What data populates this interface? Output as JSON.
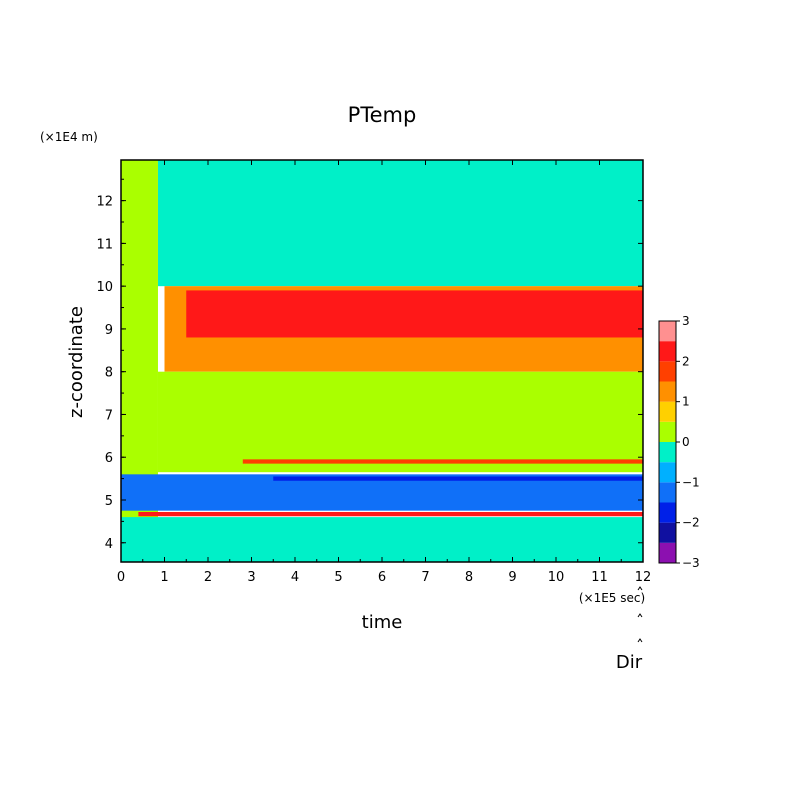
{
  "chart_data": {
    "type": "heatmap",
    "title": "PTemp",
    "xlabel": "time",
    "ylabel": "z-coordinate",
    "x_unit": "(×1E5 sec)",
    "y_unit": "(×1E4 m)",
    "xlim": [
      0,
      12
    ],
    "ylim": [
      3.55,
      12.95
    ],
    "x_ticks": [
      "0",
      "1",
      "2",
      "3",
      "4",
      "5",
      "6",
      "7",
      "8",
      "9",
      "10",
      "11",
      "12"
    ],
    "y_ticks": [
      "4",
      "5",
      "6",
      "7",
      "8",
      "9",
      "10",
      "11",
      "12"
    ],
    "colorbar": {
      "levels": [
        -3,
        -2.5,
        -2,
        -1.5,
        -1,
        -0.5,
        0,
        0.5,
        1,
        1.5,
        2,
        2.5,
        3
      ],
      "tick_labels": [
        "-3",
        "-2",
        "-1",
        "0",
        "1",
        "2",
        "3"
      ],
      "colors": [
        "#8c10b0",
        "#1010a0",
        "#0020e8",
        "#1070f8",
        "#00b0ff",
        "#00f0c8",
        "#aaff00",
        "#ffd000",
        "#ff9000",
        "#ff4000",
        "#ff1818",
        "#ff9090"
      ],
      "over_color": "#ffffff"
    },
    "regions": [
      {
        "name": "upper-stable",
        "t": [
          0.85,
          12
        ],
        "z": [
          10.0,
          12.95
        ],
        "value": -0.25
      },
      {
        "name": "upper-onset",
        "t": [
          0.0,
          0.85
        ],
        "z": [
          3.6,
          12.95
        ],
        "value": 0.25
      },
      {
        "name": "warm-tropopause-band",
        "t": [
          1.0,
          12
        ],
        "z": [
          8.0,
          10.0
        ],
        "value": 1.2
      },
      {
        "name": "hot-layer-core",
        "t": [
          1.5,
          12
        ],
        "z": [
          8.8,
          9.9
        ],
        "value": 2.2
      },
      {
        "name": "mid-troposphere",
        "t": [
          0.85,
          12
        ],
        "z": [
          5.65,
          8.0
        ],
        "value": 0.25
      },
      {
        "name": "warm-line-5.9",
        "t": [
          2.8,
          12
        ],
        "z": [
          5.85,
          5.95
        ],
        "value": 1.7
      },
      {
        "name": "cold-layer",
        "t": [
          0.0,
          12
        ],
        "z": [
          4.75,
          5.6
        ],
        "value": -1.2
      },
      {
        "name": "cold-core",
        "t": [
          3.5,
          12
        ],
        "z": [
          5.45,
          5.55
        ],
        "value": -1.8
      },
      {
        "name": "warm-line-4.7",
        "t": [
          0.4,
          12
        ],
        "z": [
          4.62,
          4.72
        ],
        "value": 2.0
      },
      {
        "name": "lower-banding",
        "t": [
          0.0,
          12
        ],
        "z": [
          3.55,
          4.6
        ],
        "value": -0.25
      }
    ],
    "side_labels": [
      "Dir"
    ]
  }
}
